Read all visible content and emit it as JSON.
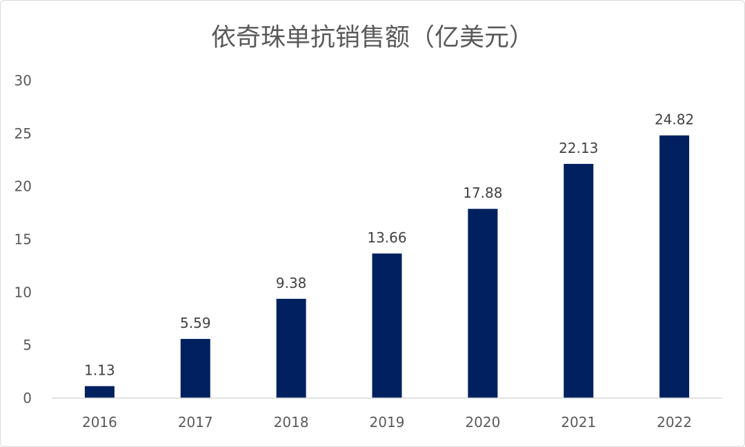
{
  "chart_data": {
    "type": "bar",
    "title": "依奇珠单抗销售额（亿美元）",
    "xlabel": "",
    "ylabel": "",
    "categories": [
      "2016",
      "2017",
      "2018",
      "2019",
      "2020",
      "2021",
      "2022"
    ],
    "values": [
      1.13,
      5.59,
      9.38,
      13.66,
      17.88,
      22.13,
      24.82
    ],
    "data_labels": [
      "1.13",
      "5.59",
      "9.38",
      "13.66",
      "17.88",
      "22.13",
      "24.82"
    ],
    "ylim": [
      0,
      30
    ],
    "yticks": [
      0,
      5,
      10,
      15,
      20,
      25,
      30
    ],
    "ytick_labels": [
      "0",
      "5",
      "10",
      "15",
      "20",
      "25",
      "30"
    ],
    "grid": false,
    "legend": "none",
    "bar_color": "#002060"
  }
}
